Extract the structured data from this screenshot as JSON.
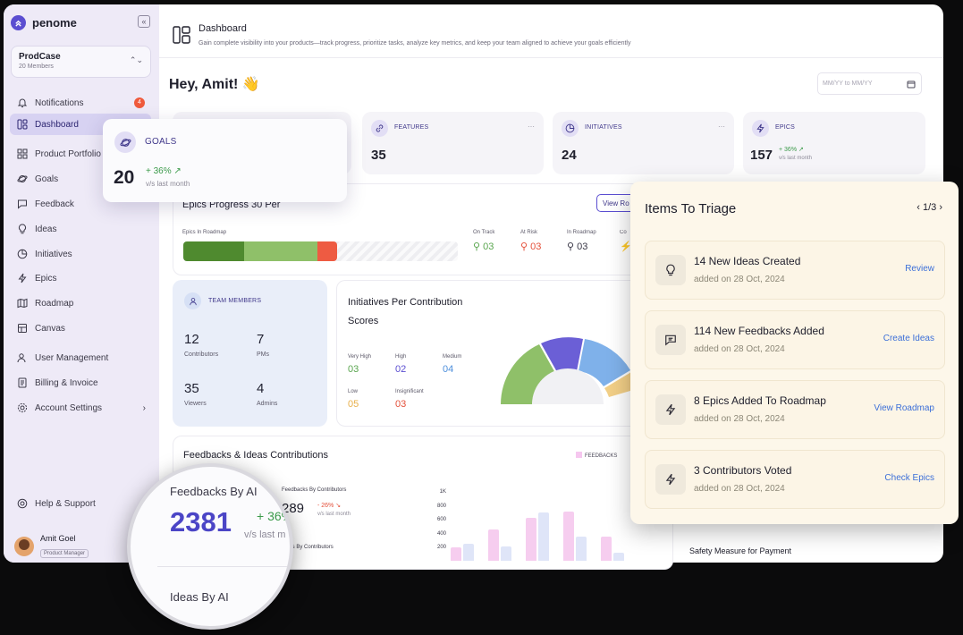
{
  "app": {
    "name": "penome"
  },
  "sidebar": {
    "workspace": {
      "name": "ProdCase",
      "members": "20 Members"
    },
    "nav": [
      {
        "label": "Notifications",
        "badge": "4"
      },
      {
        "label": "Dashboard"
      },
      {
        "label": "Product Portfolio"
      },
      {
        "label": "Goals"
      },
      {
        "label": "Feedback"
      },
      {
        "label": "Ideas"
      },
      {
        "label": "Initiatives"
      },
      {
        "label": "Epics"
      },
      {
        "label": "Roadmap"
      },
      {
        "label": "Canvas"
      },
      {
        "label": "User Management"
      },
      {
        "label": "Billing & Invoice"
      },
      {
        "label": "Account Settings"
      }
    ],
    "help": "Help & Support",
    "user": {
      "name": "Amit Goel",
      "role": "Product Manager"
    }
  },
  "header": {
    "title": "Dashboard",
    "subtitle": "Gain complete visibility into your products—track progress, prioritize tasks, analyze key metrics, and keep your team aligned to achieve your goals efficiently"
  },
  "greeting": "Hey, Amit! 👋",
  "date_filter": {
    "placeholder": "MM/YY to MM/YY"
  },
  "stats": [
    {
      "label": "FEATURES",
      "value": "35"
    },
    {
      "label": "INITIATIVES",
      "value": "24"
    },
    {
      "label": "EPICS",
      "value": "157",
      "delta": "+ 36% ↗",
      "vs": "v/s last month"
    }
  ],
  "goal_card": {
    "label": "GOALS",
    "value": "20",
    "delta": "+ 36% ↗",
    "vs": "v/s last month"
  },
  "epics_progress": {
    "title": "Epics Progress 30 Per",
    "bar_label": "Epics In Roadmap",
    "view_button": "View Ro",
    "segments": {
      "dark": 0.22,
      "light": 0.27,
      "red": 0.07
    },
    "stats": [
      {
        "label": "On Track",
        "value": "03",
        "color": "#5aa64f"
      },
      {
        "label": "At Risk",
        "value": "03",
        "color": "#e4503a"
      },
      {
        "label": "In Roadmap",
        "value": "03",
        "color": "#3a3847"
      },
      {
        "label": "Co",
        "value": "",
        "color": "#3a9a3f"
      }
    ]
  },
  "team": {
    "label": "TEAM MEMBERS",
    "items": [
      {
        "value": "12",
        "label": "Contributors"
      },
      {
        "value": "7",
        "label": "PMs"
      },
      {
        "value": "35",
        "label": "Viewers"
      },
      {
        "value": "4",
        "label": "Admins"
      }
    ]
  },
  "initiatives_chart": {
    "title_line1": "Initiatives Per Contribution",
    "title_line2": "Scores",
    "legend": [
      {
        "label": "Very High",
        "value": "03",
        "color": "#5aa64f"
      },
      {
        "label": "High",
        "value": "02",
        "color": "#5b4ed1"
      },
      {
        "label": "Medium",
        "value": "04",
        "color": "#4f90dc"
      },
      {
        "label": "Low",
        "value": "05",
        "color": "#e8b04a"
      },
      {
        "label": "Insignificant",
        "value": "03",
        "color": "#e4503a"
      }
    ]
  },
  "feedback_panel": {
    "title": "Feedbacks & Ideas Contributions",
    "legend": "FEEDBACKS",
    "sub_title": "Feedbacks By Contributors",
    "sub_value": "289",
    "sub_delta": "- 26% ↘",
    "sub_vs": "v/s last month",
    "ideas_by": "Ideas By Contributors",
    "y_ticks": [
      "1K",
      "800",
      "600",
      "400",
      "200"
    ],
    "bars_pink": [
      0.19,
      0.45,
      0.62,
      0.7,
      0.35
    ],
    "bars_blue": [
      0.24,
      0.21,
      0.69,
      0.35,
      0.11
    ]
  },
  "safety": "Safety Measure for Payment",
  "triage": {
    "title": "Items To Triage",
    "pager": "1/3",
    "items": [
      {
        "title": "14 New Ideas Created",
        "sub": "added on 28 Oct, 2024",
        "action": "Review",
        "icon": "bulb"
      },
      {
        "title": "114 New Feedbacks Added",
        "sub": "added on 28 Oct, 2024",
        "action": "Create Ideas",
        "icon": "chat"
      },
      {
        "title": "8 Epics Added To Roadmap",
        "sub": "added on 28 Oct, 2024",
        "action": "View Roadmap",
        "icon": "bolt"
      },
      {
        "title": "3 Contributors Voted",
        "sub": "added on 28 Oct, 2024",
        "action": "Check Epics",
        "icon": "bolt"
      }
    ]
  },
  "magnifier": {
    "title": "Feedbacks By AI",
    "value": "2381",
    "delta": "+ 36%",
    "vs": "v/s last m",
    "ideas": "Ideas By AI"
  }
}
